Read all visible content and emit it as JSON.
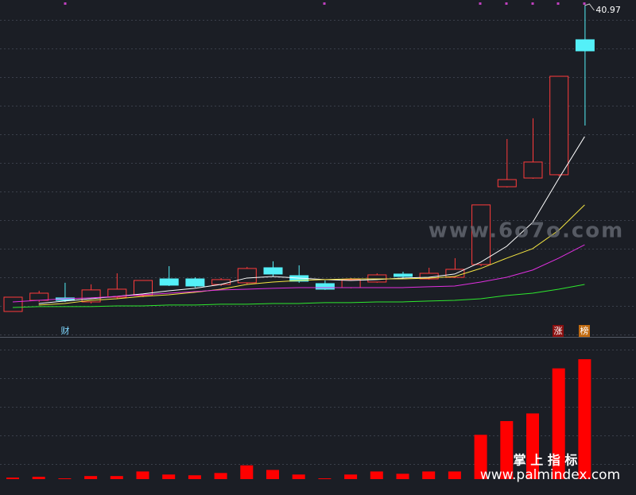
{
  "chart_data": {
    "type": "candlestick",
    "ylim": [
      9.44,
      41.5
    ],
    "up_color": "#ff3b3b",
    "down_color": "#54f0f8",
    "open": [
      11.86,
      12.92,
      13.15,
      12.77,
      13.22,
      13.38,
      14.96,
      14.96,
      14.43,
      14.59,
      16.02,
      15.27,
      14.51,
      14.13,
      14.66,
      15.42,
      14.96,
      15.11,
      16.33,
      23.73,
      24.56,
      24.87,
      37.72
    ],
    "high": [
      13.22,
      13.83,
      14.59,
      14.44,
      15.49,
      14.81,
      16.17,
      15.11,
      15.04,
      16.1,
      16.63,
      16.25,
      14.81,
      15.04,
      15.49,
      15.64,
      16.02,
      16.93,
      22.0,
      28.27,
      30.24,
      34.24,
      40.97
    ],
    "low": [
      11.86,
      12.77,
      12.77,
      12.62,
      13.07,
      13.22,
      14.28,
      14.13,
      14.28,
      14.43,
      15.19,
      14.59,
      13.91,
      14.06,
      14.59,
      15.04,
      14.89,
      15.04,
      16.17,
      23.66,
      24.49,
      24.72,
      29.55
    ],
    "close": [
      13.22,
      13.6,
      12.92,
      13.91,
      13.98,
      14.81,
      14.36,
      14.28,
      14.89,
      15.95,
      15.42,
      14.74,
      13.98,
      14.89,
      15.34,
      15.19,
      15.49,
      15.87,
      22.0,
      24.41,
      26.08,
      34.24,
      36.66
    ],
    "moving_averages": [
      {
        "color": "#ffffff",
        "values": [
          null,
          12.62,
          12.85,
          13.07,
          13.3,
          13.53,
          13.83,
          14.06,
          14.43,
          15.04,
          15.19,
          15.04,
          14.89,
          14.81,
          14.89,
          15.04,
          15.11,
          15.42,
          16.55,
          18.06,
          20.33,
          24.49,
          28.5
        ]
      },
      {
        "color": "#f5e642",
        "values": [
          null,
          12.47,
          12.62,
          12.92,
          13.07,
          13.3,
          13.45,
          13.68,
          13.98,
          14.43,
          14.66,
          14.81,
          14.89,
          14.96,
          14.96,
          14.96,
          15.04,
          15.19,
          15.95,
          16.93,
          17.84,
          19.58,
          22.0
        ]
      },
      {
        "color": "#e030e0",
        "values": [
          12.77,
          12.92,
          13.07,
          13.15,
          13.3,
          13.45,
          13.6,
          13.75,
          13.91,
          13.98,
          14.06,
          14.13,
          14.13,
          14.13,
          14.13,
          14.13,
          14.21,
          14.28,
          14.66,
          15.11,
          15.8,
          16.93,
          18.21
        ]
      },
      {
        "color": "#2ee82e",
        "values": [
          12.24,
          12.32,
          12.32,
          12.32,
          12.39,
          12.39,
          12.47,
          12.47,
          12.55,
          12.55,
          12.62,
          12.62,
          12.7,
          12.7,
          12.77,
          12.77,
          12.85,
          12.92,
          13.07,
          13.38,
          13.6,
          13.98,
          14.43
        ]
      }
    ],
    "volume": {
      "color": "#ff0000",
      "ylim": [
        0,
        180
      ],
      "values": [
        2,
        3,
        1,
        4,
        4,
        10,
        6,
        5,
        8,
        18,
        12,
        6,
        1,
        6,
        10,
        7,
        10,
        10,
        58,
        76,
        86,
        145,
        157
      ]
    },
    "annotations": [
      "财",
      "涨",
      "榜"
    ],
    "watermarks": [
      "www.6o7o.com",
      "掌 上 指 标",
      "www.palmindex.com"
    ]
  }
}
